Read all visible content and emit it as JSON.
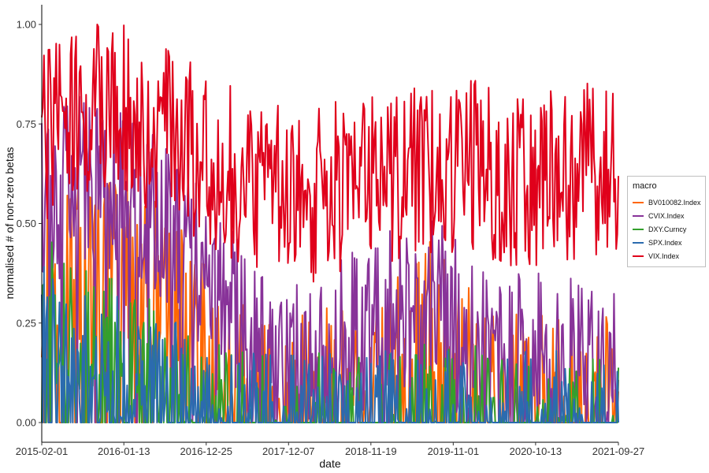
{
  "chart_data": {
    "type": "line",
    "xlabel": "date",
    "ylabel": "normalised # of non-zero betas",
    "x_ticks": [
      "2015-02-01",
      "2016-01-13",
      "2016-12-25",
      "2017-12-07",
      "2018-11-19",
      "2019-11-01",
      "2020-10-13",
      "2021-09-27"
    ],
    "y_ticks": [
      "0.00",
      "0.25",
      "0.50",
      "0.75",
      "1.00"
    ],
    "xlim": [
      "2015-02-01",
      "2021-09-27"
    ],
    "ylim": [
      0,
      1
    ],
    "grid": false,
    "legend_title": "macro",
    "legend_position": "right",
    "series": [
      {
        "name": "BV010082.Index",
        "color": "#FF6600",
        "x": [
          "2015-02-01",
          "2015-08-01",
          "2016-02-01",
          "2016-08-01",
          "2017-02-01",
          "2017-08-01",
          "2018-02-01",
          "2018-08-01",
          "2019-02-01",
          "2019-08-01",
          "2020-02-01",
          "2020-08-01",
          "2021-02-01",
          "2021-09-27"
        ],
        "values": [
          0.35,
          0.42,
          0.4,
          0.3,
          0.15,
          0.05,
          0.05,
          0.08,
          0.12,
          0.25,
          0.1,
          0.05,
          0.05,
          0.05
        ]
      },
      {
        "name": "CVIX.Index",
        "color": "#883399",
        "x": [
          "2015-02-01",
          "2015-08-01",
          "2016-02-01",
          "2016-08-01",
          "2017-02-01",
          "2017-08-01",
          "2018-02-01",
          "2018-08-01",
          "2019-02-01",
          "2019-08-01",
          "2020-02-01",
          "2020-08-01",
          "2021-02-01",
          "2021-09-27"
        ],
        "values": [
          0.55,
          0.62,
          0.58,
          0.48,
          0.35,
          0.15,
          0.15,
          0.22,
          0.28,
          0.3,
          0.2,
          0.18,
          0.15,
          0.12
        ]
      },
      {
        "name": "DXY.Curncy",
        "color": "#33A02C",
        "x": [
          "2015-02-01",
          "2015-08-01",
          "2016-02-01",
          "2016-08-01",
          "2017-02-01",
          "2017-08-01",
          "2018-02-01",
          "2018-08-01",
          "2019-02-01",
          "2019-08-01",
          "2020-02-01",
          "2020-08-01",
          "2021-02-01",
          "2021-09-27"
        ],
        "values": [
          0.3,
          0.22,
          0.18,
          0.1,
          0.03,
          0.0,
          0.0,
          0.0,
          0.0,
          0.02,
          0.02,
          0.0,
          0.0,
          0.0
        ]
      },
      {
        "name": "SPX.Index",
        "color": "#2B6BAF",
        "x": [
          "2015-02-01",
          "2015-08-01",
          "2016-02-01",
          "2016-08-01",
          "2017-02-01",
          "2017-08-01",
          "2018-02-01",
          "2018-08-01",
          "2019-02-01",
          "2019-08-01",
          "2020-02-01",
          "2020-08-01",
          "2021-02-01",
          "2021-09-27"
        ],
        "values": [
          0.25,
          0.18,
          0.15,
          0.1,
          0.04,
          0.02,
          0.02,
          0.02,
          0.02,
          0.02,
          0.03,
          0.03,
          0.03,
          0.02
        ]
      },
      {
        "name": "VIX.Index",
        "color": "#E0001B",
        "x": [
          "2015-02-01",
          "2015-08-01",
          "2016-02-01",
          "2016-08-01",
          "2017-02-01",
          "2017-08-01",
          "2018-02-01",
          "2018-08-01",
          "2019-02-01",
          "2019-08-01",
          "2020-02-01",
          "2020-08-01",
          "2021-02-01",
          "2021-09-27"
        ],
        "values": [
          0.72,
          0.8,
          0.78,
          0.72,
          0.65,
          0.6,
          0.55,
          0.6,
          0.62,
          0.62,
          0.65,
          0.6,
          0.62,
          0.65
        ]
      }
    ]
  }
}
